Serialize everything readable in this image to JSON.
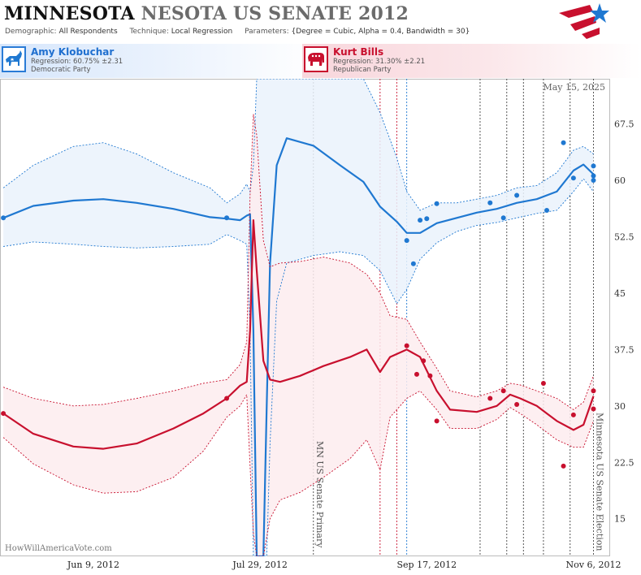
{
  "header": {
    "title_state": "MINNESOTA",
    "title_rest": "NESOTA US SENATE 2012",
    "demographic_label": "Demographic:",
    "demographic_value": "All Respondents",
    "technique_label": "Technique:",
    "technique_value": "Local Regression",
    "parameters_label": "Parameters:",
    "parameters_value": "{Degree = Cubic, Alpha = 0.4, Bandwidth = 30}"
  },
  "candidates": {
    "dem": {
      "name": "Amy Klobuchar",
      "regression": "Regression: 60.75% ±2.31",
      "party": "Democratic Party"
    },
    "rep": {
      "name": "Kurt Bills",
      "regression": "Regression: 31.30% ±2.21",
      "party": "Republican Party"
    }
  },
  "colors": {
    "dem": "#1f78d1",
    "dem_band": "#eaf2fb",
    "rep": "#c8102e",
    "rep_band": "#fdecef",
    "grid": "#000000"
  },
  "icons": {
    "dem": "donkey-icon",
    "rep": "elephant-icon",
    "logo": "star-logo-icon"
  },
  "chart_data": {
    "type": "line",
    "date_label": "May 15, 2025",
    "watermark": "HowWillAmericaVote.com",
    "x_ticks": [
      {
        "label": "Jun 9, 2012",
        "x": "2012-06-09"
      },
      {
        "label": "Jul 29, 2012",
        "x": "2012-07-29"
      },
      {
        "label": "Sep 17, 2012",
        "x": "2012-09-17"
      },
      {
        "label": "Nov 6, 2012",
        "x": "2012-11-06"
      }
    ],
    "xlim": [
      "2012-05-12",
      "2012-11-11"
    ],
    "ylim": [
      10,
      73.5
    ],
    "y_ticks": [
      {
        "label": "15",
        "value": 15
      },
      {
        "label": "22.5",
        "value": 22.5
      },
      {
        "label": "30",
        "value": 30
      },
      {
        "label": "37.5",
        "value": 37.5
      },
      {
        "label": "45",
        "value": 45
      },
      {
        "label": "52.5",
        "value": 52.5
      },
      {
        "label": "60",
        "value": 60
      },
      {
        "label": "67.5",
        "value": 67.5
      }
    ],
    "annotations": [
      {
        "label": "MN US Senate Primary",
        "x": "2012-08-14"
      },
      {
        "label": "Minnesota US Senate Election",
        "x": "2012-11-06"
      }
    ],
    "event_lines": [
      {
        "x": "2012-08-14",
        "color": "black"
      },
      {
        "x": "2012-09-03",
        "color": "red"
      },
      {
        "x": "2012-09-08",
        "color": "red"
      },
      {
        "x": "2012-09-11",
        "color": "blue"
      },
      {
        "x": "2012-10-03",
        "color": "black"
      },
      {
        "x": "2012-10-11",
        "color": "black"
      },
      {
        "x": "2012-10-16",
        "color": "black"
      },
      {
        "x": "2012-10-22",
        "color": "black"
      },
      {
        "x": "2012-10-30",
        "color": "black"
      },
      {
        "x": "2012-11-06",
        "color": "black"
      }
    ],
    "series": [
      {
        "name": "Amy Klobuchar",
        "points": [
          {
            "x": "2012-05-13",
            "y": 55
          },
          {
            "x": "2012-07-19",
            "y": 55
          },
          {
            "x": "2012-09-11",
            "y": 52
          },
          {
            "x": "2012-09-13",
            "y": 48.9
          },
          {
            "x": "2012-09-15",
            "y": 54.7
          },
          {
            "x": "2012-09-17",
            "y": 54.9
          },
          {
            "x": "2012-09-20",
            "y": 56.9
          },
          {
            "x": "2012-10-06",
            "y": 57.0
          },
          {
            "x": "2012-10-10",
            "y": 55.0
          },
          {
            "x": "2012-10-14",
            "y": 58.0
          },
          {
            "x": "2012-10-23",
            "y": 56.0
          },
          {
            "x": "2012-10-28",
            "y": 65.0
          },
          {
            "x": "2012-10-31",
            "y": 60.3
          },
          {
            "x": "2012-11-06",
            "y": 60.6
          },
          {
            "x": "2012-11-06",
            "y": 61.9
          },
          {
            "x": "2012-11-06",
            "y": 60.0
          }
        ],
        "fit": [
          {
            "x": "2012-05-13",
            "y": 55.0,
            "lo": 51.2,
            "hi": 59.0
          },
          {
            "x": "2012-05-22",
            "y": 56.6,
            "lo": 51.8,
            "hi": 62.0
          },
          {
            "x": "2012-06-03",
            "y": 57.3,
            "lo": 51.5,
            "hi": 64.5
          },
          {
            "x": "2012-06-12",
            "y": 57.5,
            "lo": 51.2,
            "hi": 65.0
          },
          {
            "x": "2012-06-22",
            "y": 57.0,
            "lo": 51.0,
            "hi": 63.5
          },
          {
            "x": "2012-07-03",
            "y": 56.2,
            "lo": 51.2,
            "hi": 61.0
          },
          {
            "x": "2012-07-14",
            "y": 55.1,
            "lo": 51.5,
            "hi": 59.0
          },
          {
            "x": "2012-07-19",
            "y": 54.9,
            "lo": 52.8,
            "hi": 57.0
          },
          {
            "x": "2012-07-23",
            "y": 54.7,
            "lo": 52.0,
            "hi": 58.2
          },
          {
            "x": "2012-07-25",
            "y": 55.3,
            "lo": 51.5,
            "hi": 59.5
          },
          {
            "x": "2012-07-26",
            "y": 55.5,
            "lo": 40.0,
            "hi": 58.5
          },
          {
            "x": "2012-07-27",
            "y": 40.0,
            "lo": 10.0,
            "hi": 62.0
          },
          {
            "x": "2012-07-28",
            "y": 10.0,
            "lo": 10.0,
            "hi": 73.5
          },
          {
            "x": "2012-07-30",
            "y": 10.0,
            "lo": 10.0,
            "hi": 73.5
          },
          {
            "x": "2012-07-31",
            "y": 30.0,
            "lo": 10.0,
            "hi": 73.5
          },
          {
            "x": "2012-08-01",
            "y": 49.0,
            "lo": 25.0,
            "hi": 73.5
          },
          {
            "x": "2012-08-03",
            "y": 62.0,
            "lo": 44.0,
            "hi": 73.5
          },
          {
            "x": "2012-08-06",
            "y": 65.6,
            "lo": 49.0,
            "hi": 73.5
          },
          {
            "x": "2012-08-14",
            "y": 64.6,
            "lo": 50.0,
            "hi": 73.5
          },
          {
            "x": "2012-08-22",
            "y": 62.0,
            "lo": 50.5,
            "hi": 73.5
          },
          {
            "x": "2012-08-29",
            "y": 59.8,
            "lo": 50.0,
            "hi": 73.5
          },
          {
            "x": "2012-09-03",
            "y": 56.5,
            "lo": 48.0,
            "hi": 69.0
          },
          {
            "x": "2012-09-08",
            "y": 54.5,
            "lo": 43.6,
            "hi": 63.0
          },
          {
            "x": "2012-09-11",
            "y": 53.0,
            "lo": 45.5,
            "hi": 58.5
          },
          {
            "x": "2012-09-15",
            "y": 53.0,
            "lo": 49.5,
            "hi": 56.0
          },
          {
            "x": "2012-09-20",
            "y": 54.3,
            "lo": 51.7,
            "hi": 57.0
          },
          {
            "x": "2012-09-26",
            "y": 55.0,
            "lo": 53.2,
            "hi": 57.0
          },
          {
            "x": "2012-10-02",
            "y": 55.7,
            "lo": 54.0,
            "hi": 57.5
          },
          {
            "x": "2012-10-08",
            "y": 56.2,
            "lo": 54.4,
            "hi": 58.0
          },
          {
            "x": "2012-10-14",
            "y": 57.0,
            "lo": 55.0,
            "hi": 59.0
          },
          {
            "x": "2012-10-20",
            "y": 57.5,
            "lo": 55.6,
            "hi": 59.3
          },
          {
            "x": "2012-10-26",
            "y": 58.5,
            "lo": 56.0,
            "hi": 61.0
          },
          {
            "x": "2012-10-31",
            "y": 61.3,
            "lo": 58.5,
            "hi": 64.0
          },
          {
            "x": "2012-11-03",
            "y": 62.1,
            "lo": 60.2,
            "hi": 64.5
          },
          {
            "x": "2012-11-06",
            "y": 60.8,
            "lo": 58.5,
            "hi": 63.5
          }
        ]
      },
      {
        "name": "Kurt Bills",
        "points": [
          {
            "x": "2012-05-13",
            "y": 29
          },
          {
            "x": "2012-07-19",
            "y": 31
          },
          {
            "x": "2012-09-11",
            "y": 38
          },
          {
            "x": "2012-09-14",
            "y": 34.2
          },
          {
            "x": "2012-09-16",
            "y": 36.0
          },
          {
            "x": "2012-09-18",
            "y": 34.0
          },
          {
            "x": "2012-09-20",
            "y": 28.0
          },
          {
            "x": "2012-10-06",
            "y": 31.0
          },
          {
            "x": "2012-10-10",
            "y": 32.0
          },
          {
            "x": "2012-10-14",
            "y": 30.2
          },
          {
            "x": "2012-10-22",
            "y": 33.0
          },
          {
            "x": "2012-10-28",
            "y": 22.0
          },
          {
            "x": "2012-10-31",
            "y": 28.8
          },
          {
            "x": "2012-11-06",
            "y": 29.6
          },
          {
            "x": "2012-11-06",
            "y": 32.0
          }
        ],
        "fit": [
          {
            "x": "2012-05-13",
            "y": 29.0,
            "lo": 25.8,
            "hi": 32.5
          },
          {
            "x": "2012-05-22",
            "y": 26.3,
            "lo": 22.3,
            "hi": 31.0
          },
          {
            "x": "2012-06-03",
            "y": 24.6,
            "lo": 19.5,
            "hi": 30.0
          },
          {
            "x": "2012-06-12",
            "y": 24.3,
            "lo": 18.4,
            "hi": 30.2
          },
          {
            "x": "2012-06-22",
            "y": 25.0,
            "lo": 18.6,
            "hi": 31.0
          },
          {
            "x": "2012-07-03",
            "y": 27.0,
            "lo": 20.5,
            "hi": 32.0
          },
          {
            "x": "2012-07-12",
            "y": 29.0,
            "lo": 24.0,
            "hi": 33.0
          },
          {
            "x": "2012-07-19",
            "y": 31.0,
            "lo": 28.5,
            "hi": 33.5
          },
          {
            "x": "2012-07-23",
            "y": 32.7,
            "lo": 30.0,
            "hi": 35.5
          },
          {
            "x": "2012-07-25",
            "y": 33.2,
            "lo": 31.5,
            "hi": 38.5
          },
          {
            "x": "2012-07-26",
            "y": 40.0,
            "lo": 22.0,
            "hi": 58.0
          },
          {
            "x": "2012-07-27",
            "y": 54.7,
            "lo": 13.0,
            "hi": 68.8
          },
          {
            "x": "2012-07-28",
            "y": 48.0,
            "lo": 10.0,
            "hi": 66.0
          },
          {
            "x": "2012-07-30",
            "y": 36.0,
            "lo": 10.0,
            "hi": 52.0
          },
          {
            "x": "2012-08-01",
            "y": 33.5,
            "lo": 15.0,
            "hi": 48.5
          },
          {
            "x": "2012-08-04",
            "y": 33.2,
            "lo": 17.5,
            "hi": 49.0
          },
          {
            "x": "2012-08-10",
            "y": 34.0,
            "lo": 18.5,
            "hi": 49.2
          },
          {
            "x": "2012-08-17",
            "y": 35.3,
            "lo": 20.5,
            "hi": 49.8
          },
          {
            "x": "2012-08-25",
            "y": 36.5,
            "lo": 23.0,
            "hi": 49.0
          },
          {
            "x": "2012-08-30",
            "y": 37.5,
            "lo": 25.5,
            "hi": 47.5
          },
          {
            "x": "2012-09-03",
            "y": 34.5,
            "lo": 21.5,
            "hi": 45.0
          },
          {
            "x": "2012-09-06",
            "y": 36.5,
            "lo": 28.5,
            "hi": 42.0
          },
          {
            "x": "2012-09-11",
            "y": 37.5,
            "lo": 31.0,
            "hi": 41.5
          },
          {
            "x": "2012-09-15",
            "y": 36.5,
            "lo": 32.0,
            "hi": 38.5
          },
          {
            "x": "2012-09-20",
            "y": 32.0,
            "lo": 29.5,
            "hi": 35.0
          },
          {
            "x": "2012-09-24",
            "y": 29.5,
            "lo": 27.0,
            "hi": 32.0
          },
          {
            "x": "2012-10-02",
            "y": 29.2,
            "lo": 27.0,
            "hi": 31.2
          },
          {
            "x": "2012-10-08",
            "y": 30.0,
            "lo": 28.2,
            "hi": 32.0
          },
          {
            "x": "2012-10-12",
            "y": 31.5,
            "lo": 29.8,
            "hi": 33.0
          },
          {
            "x": "2012-10-15",
            "y": 31.0,
            "lo": 29.0,
            "hi": 32.8
          },
          {
            "x": "2012-10-20",
            "y": 30.0,
            "lo": 27.5,
            "hi": 32.0
          },
          {
            "x": "2012-10-26",
            "y": 28.0,
            "lo": 25.5,
            "hi": 31.0
          },
          {
            "x": "2012-10-31",
            "y": 26.8,
            "lo": 24.5,
            "hi": 29.5
          },
          {
            "x": "2012-11-03",
            "y": 27.5,
            "lo": 24.5,
            "hi": 30.5
          },
          {
            "x": "2012-11-06",
            "y": 31.3,
            "lo": 28.0,
            "hi": 34.0
          }
        ]
      }
    ]
  }
}
